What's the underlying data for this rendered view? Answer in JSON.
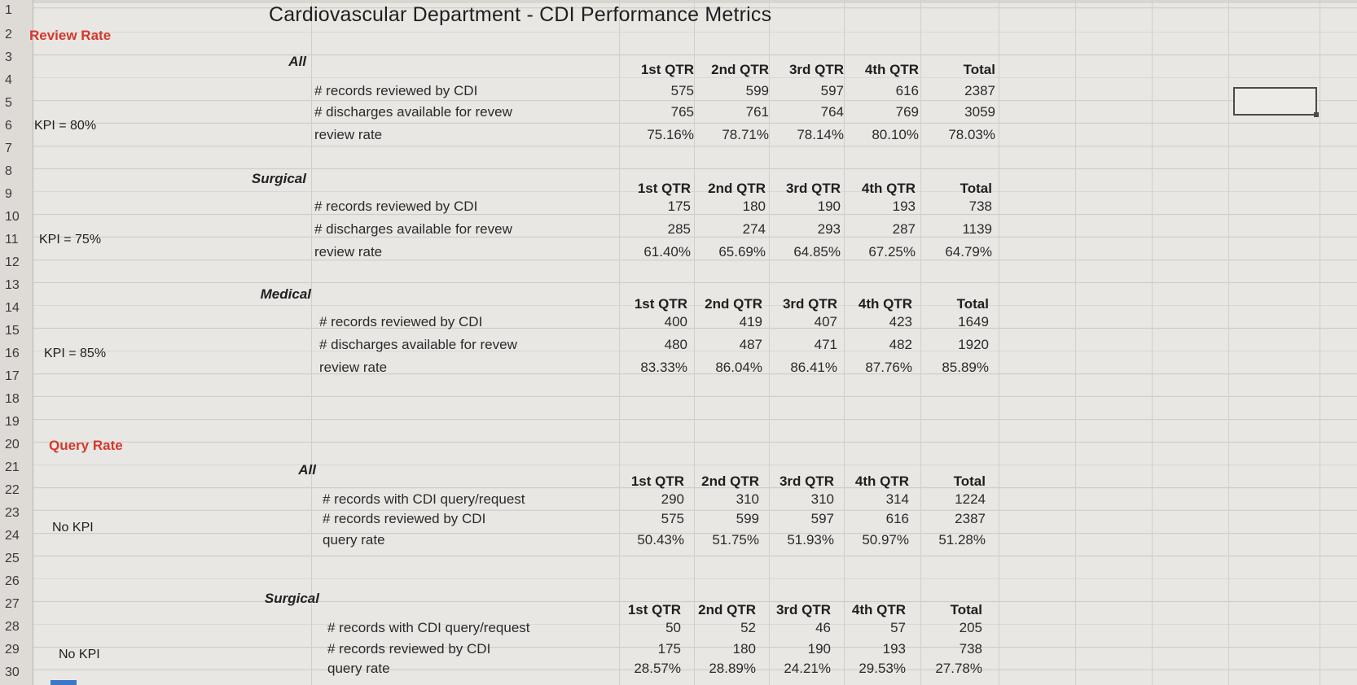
{
  "title": "Cardiovascular Department - CDI Performance Metrics",
  "row_numbers": [
    "1",
    "2",
    "3",
    "4",
    "5",
    "6",
    "7",
    "8",
    "9",
    "10",
    "11",
    "12",
    "13",
    "14",
    "15",
    "16",
    "17",
    "18",
    "19",
    "20",
    "21",
    "22",
    "23",
    "24",
    "25",
    "26",
    "27",
    "28",
    "29",
    "30"
  ],
  "sections": {
    "review_rate": "Review Rate",
    "query_rate": "Query Rate"
  },
  "quarter_headers": [
    "1st QTR",
    "2nd QTR",
    "3rd QTR",
    "4th QTR",
    "Total"
  ],
  "blocks": [
    {
      "group": "All",
      "kpi": "KPI = 80%",
      "labels": [
        "# records reviewed by CDI",
        "# discharges available for revew",
        "review rate"
      ],
      "rows": [
        [
          "575",
          "599",
          "597",
          "616",
          "2387"
        ],
        [
          "765",
          "761",
          "764",
          "769",
          "3059"
        ],
        [
          "75.16%",
          "78.71%",
          "78.14%",
          "80.10%",
          "78.03%"
        ]
      ]
    },
    {
      "group": "Surgical",
      "kpi": "KPI = 75%",
      "labels": [
        "# records reviewed by CDI",
        "# discharges available for revew",
        "review rate"
      ],
      "rows": [
        [
          "175",
          "180",
          "190",
          "193",
          "738"
        ],
        [
          "285",
          "274",
          "293",
          "287",
          "1139"
        ],
        [
          "61.40%",
          "65.69%",
          "64.85%",
          "67.25%",
          "64.79%"
        ]
      ]
    },
    {
      "group": "Medical",
      "kpi": "KPI = 85%",
      "labels": [
        "# records reviewed by CDI",
        "# discharges available for revew",
        "review rate"
      ],
      "rows": [
        [
          "400",
          "419",
          "407",
          "423",
          "1649"
        ],
        [
          "480",
          "487",
          "471",
          "482",
          "1920"
        ],
        [
          "83.33%",
          "86.04%",
          "86.41%",
          "87.76%",
          "85.89%"
        ]
      ]
    },
    {
      "group": "All",
      "kpi": "No KPI",
      "labels": [
        "# records with CDI query/request",
        "# records reviewed by CDI",
        "query rate"
      ],
      "rows": [
        [
          "290",
          "310",
          "310",
          "314",
          "1224"
        ],
        [
          "575",
          "599",
          "597",
          "616",
          "2387"
        ],
        [
          "50.43%",
          "51.75%",
          "51.93%",
          "50.97%",
          "51.28%"
        ]
      ]
    },
    {
      "group": "Surgical",
      "kpi": "No KPI",
      "labels": [
        "# records with CDI query/request",
        "# records reviewed by CDI",
        "query rate"
      ],
      "rows": [
        [
          "50",
          "52",
          "46",
          "57",
          "205"
        ],
        [
          "175",
          "180",
          "190",
          "193",
          "738"
        ],
        [
          "28.57%",
          "28.89%",
          "24.21%",
          "29.53%",
          "27.78%"
        ]
      ]
    }
  ]
}
